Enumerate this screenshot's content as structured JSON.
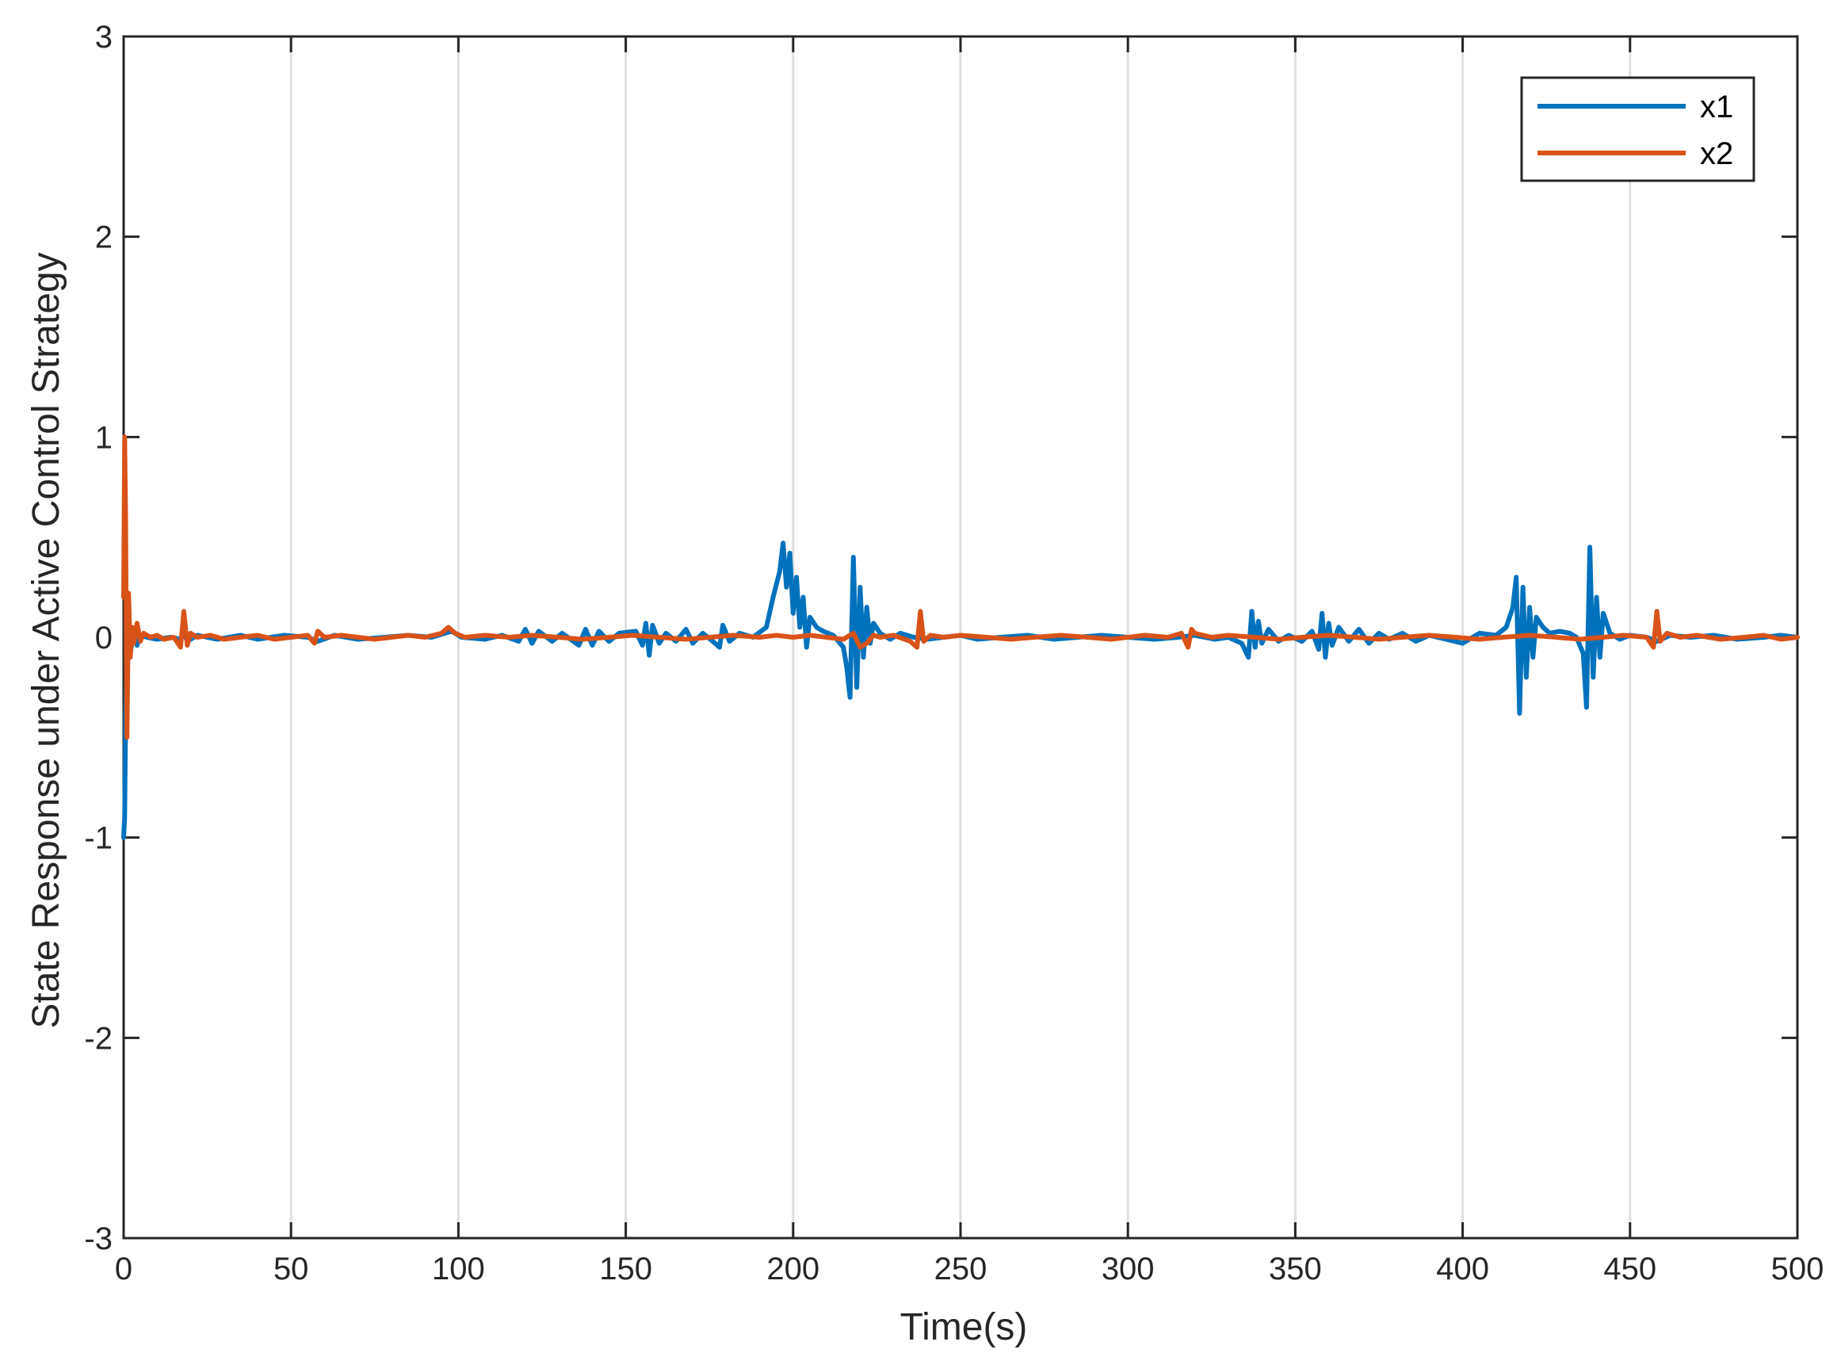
{
  "chart_data": {
    "type": "line",
    "title": "",
    "xlabel": "Time(s)",
    "ylabel": "State Response under Active Control Strategy",
    "xlim": [
      0,
      500
    ],
    "ylim": [
      -3,
      3
    ],
    "xticks": [
      0,
      50,
      100,
      150,
      200,
      250,
      300,
      350,
      400,
      450,
      500
    ],
    "yticks": [
      -3,
      -2,
      -1,
      0,
      1,
      2,
      3
    ],
    "xtick_labels": [
      "0",
      "50",
      "100",
      "150",
      "200",
      "250",
      "300",
      "350",
      "400",
      "450",
      "500"
    ],
    "ytick_labels": [
      "-3",
      "-2",
      "-1",
      "0",
      "1",
      "2",
      "3"
    ],
    "grid": "vertical",
    "legend_position": "top-right",
    "colors": {
      "grid": "#dfdfdf",
      "axes": "#262626",
      "background": "#ffffff"
    },
    "series": [
      {
        "name": "x1",
        "color": "#0072BD",
        "points": [
          [
            0,
            -1.0
          ],
          [
            0.3,
            -0.9
          ],
          [
            0.6,
            -0.4
          ],
          [
            1,
            -0.15
          ],
          [
            1.5,
            0.05
          ],
          [
            2,
            -0.08
          ],
          [
            3,
            0.03
          ],
          [
            4,
            -0.04
          ],
          [
            5,
            0.01
          ],
          [
            7,
            0.0
          ],
          [
            10,
            -0.01
          ],
          [
            14,
            0.0
          ],
          [
            17,
            -0.01
          ],
          [
            18,
            0.02
          ],
          [
            19,
            -0.02
          ],
          [
            22,
            0.01
          ],
          [
            28,
            -0.01
          ],
          [
            35,
            0.01
          ],
          [
            40,
            -0.01
          ],
          [
            48,
            0.01
          ],
          [
            55,
            0.0
          ],
          [
            58,
            -0.02
          ],
          [
            63,
            0.01
          ],
          [
            70,
            -0.01
          ],
          [
            78,
            0.0
          ],
          [
            85,
            0.01
          ],
          [
            92,
            0.0
          ],
          [
            98,
            0.03
          ],
          [
            101,
            0.0
          ],
          [
            108,
            -0.01
          ],
          [
            113,
            0.01
          ],
          [
            118,
            -0.02
          ],
          [
            120,
            0.04
          ],
          [
            122,
            -0.03
          ],
          [
            124,
            0.03
          ],
          [
            128,
            -0.02
          ],
          [
            131,
            0.02
          ],
          [
            136,
            -0.04
          ],
          [
            138,
            0.04
          ],
          [
            140,
            -0.04
          ],
          [
            142,
            0.03
          ],
          [
            145,
            -0.02
          ],
          [
            148,
            0.02
          ],
          [
            153,
            0.03
          ],
          [
            155,
            -0.04
          ],
          [
            156,
            0.07
          ],
          [
            157,
            -0.09
          ],
          [
            158,
            0.06
          ],
          [
            160,
            -0.03
          ],
          [
            162,
            0.02
          ],
          [
            165,
            -0.02
          ],
          [
            168,
            0.04
          ],
          [
            170,
            -0.03
          ],
          [
            173,
            0.02
          ],
          [
            176,
            -0.02
          ],
          [
            178,
            -0.05
          ],
          [
            179,
            0.06
          ],
          [
            181,
            -0.02
          ],
          [
            184,
            0.02
          ],
          [
            188,
            0.0
          ],
          [
            192,
            0.05
          ],
          [
            194,
            0.2
          ],
          [
            196,
            0.33
          ],
          [
            197,
            0.47
          ],
          [
            198,
            0.25
          ],
          [
            199,
            0.42
          ],
          [
            200,
            0.12
          ],
          [
            201,
            0.3
          ],
          [
            202,
            0.05
          ],
          [
            203,
            0.2
          ],
          [
            204,
            -0.05
          ],
          [
            205,
            0.1
          ],
          [
            207,
            0.05
          ],
          [
            209,
            0.03
          ],
          [
            212,
            0.01
          ],
          [
            215,
            -0.05
          ],
          [
            216,
            -0.15
          ],
          [
            217,
            -0.3
          ],
          [
            218,
            0.4
          ],
          [
            219,
            -0.25
          ],
          [
            220,
            0.25
          ],
          [
            221,
            -0.1
          ],
          [
            222,
            0.15
          ],
          [
            223,
            -0.03
          ],
          [
            224,
            0.07
          ],
          [
            226,
            0.02
          ],
          [
            229,
            -0.01
          ],
          [
            232,
            0.02
          ],
          [
            236,
            0.0
          ],
          [
            240,
            -0.01
          ],
          [
            245,
            0.0
          ],
          [
            250,
            0.01
          ],
          [
            255,
            -0.01
          ],
          [
            262,
            0.0
          ],
          [
            270,
            0.01
          ],
          [
            278,
            -0.01
          ],
          [
            285,
            0.0
          ],
          [
            292,
            0.01
          ],
          [
            300,
            0.0
          ],
          [
            308,
            -0.01
          ],
          [
            315,
            0.0
          ],
          [
            320,
            0.01
          ],
          [
            326,
            -0.01
          ],
          [
            330,
            0.0
          ],
          [
            334,
            -0.03
          ],
          [
            336,
            -0.1
          ],
          [
            337,
            0.13
          ],
          [
            338,
            -0.05
          ],
          [
            339,
            0.08
          ],
          [
            340,
            -0.03
          ],
          [
            342,
            0.04
          ],
          [
            345,
            -0.02
          ],
          [
            348,
            0.01
          ],
          [
            352,
            -0.02
          ],
          [
            355,
            0.03
          ],
          [
            357,
            -0.06
          ],
          [
            358,
            0.12
          ],
          [
            359,
            -0.1
          ],
          [
            360,
            0.07
          ],
          [
            361,
            -0.04
          ],
          [
            363,
            0.05
          ],
          [
            366,
            -0.02
          ],
          [
            369,
            0.04
          ],
          [
            372,
            -0.03
          ],
          [
            375,
            0.02
          ],
          [
            378,
            -0.01
          ],
          [
            382,
            0.02
          ],
          [
            386,
            -0.02
          ],
          [
            390,
            0.01
          ],
          [
            395,
            -0.01
          ],
          [
            400,
            -0.03
          ],
          [
            405,
            0.02
          ],
          [
            410,
            0.01
          ],
          [
            413,
            0.05
          ],
          [
            415,
            0.15
          ],
          [
            416,
            0.3
          ],
          [
            417,
            -0.38
          ],
          [
            418,
            0.25
          ],
          [
            419,
            -0.2
          ],
          [
            420,
            0.15
          ],
          [
            421,
            -0.1
          ],
          [
            422,
            0.1
          ],
          [
            424,
            0.05
          ],
          [
            426,
            0.02
          ],
          [
            429,
            0.03
          ],
          [
            432,
            0.02
          ],
          [
            434,
            0.0
          ],
          [
            436,
            -0.08
          ],
          [
            437,
            -0.35
          ],
          [
            438,
            0.45
          ],
          [
            439,
            -0.2
          ],
          [
            440,
            0.2
          ],
          [
            441,
            -0.1
          ],
          [
            442,
            0.12
          ],
          [
            444,
            0.02
          ],
          [
            447,
            -0.01
          ],
          [
            450,
            0.01
          ],
          [
            455,
            0.0
          ],
          [
            458,
            -0.02
          ],
          [
            462,
            0.01
          ],
          [
            468,
            0.0
          ],
          [
            475,
            0.01
          ],
          [
            482,
            -0.01
          ],
          [
            490,
            0.0
          ],
          [
            495,
            0.01
          ],
          [
            500,
            0.0
          ]
        ]
      },
      {
        "name": "x2",
        "color": "#D95319",
        "points": [
          [
            0,
            0.2
          ],
          [
            0.3,
            1.0
          ],
          [
            0.6,
            0.6
          ],
          [
            1,
            -0.5
          ],
          [
            1.5,
            0.22
          ],
          [
            2,
            -0.1
          ],
          [
            2.5,
            0.05
          ],
          [
            3,
            -0.03
          ],
          [
            4,
            0.07
          ],
          [
            5,
            -0.02
          ],
          [
            6,
            0.02
          ],
          [
            8,
            0.0
          ],
          [
            10,
            0.01
          ],
          [
            12,
            -0.01
          ],
          [
            15,
            0.0
          ],
          [
            17,
            -0.05
          ],
          [
            18,
            0.13
          ],
          [
            19,
            -0.04
          ],
          [
            20,
            0.02
          ],
          [
            22,
            0.0
          ],
          [
            26,
            0.01
          ],
          [
            30,
            -0.01
          ],
          [
            35,
            0.0
          ],
          [
            40,
            0.01
          ],
          [
            45,
            -0.01
          ],
          [
            50,
            0.0
          ],
          [
            55,
            0.01
          ],
          [
            57,
            -0.03
          ],
          [
            58,
            0.03
          ],
          [
            60,
            0.0
          ],
          [
            65,
            0.01
          ],
          [
            70,
            0.0
          ],
          [
            75,
            -0.01
          ],
          [
            80,
            0.0
          ],
          [
            85,
            0.01
          ],
          [
            90,
            0.0
          ],
          [
            95,
            0.02
          ],
          [
            97,
            0.05
          ],
          [
            99,
            0.02
          ],
          [
            102,
            0.0
          ],
          [
            108,
            0.01
          ],
          [
            115,
            0.0
          ],
          [
            122,
            0.01
          ],
          [
            130,
            0.0
          ],
          [
            137,
            -0.01
          ],
          [
            145,
            0.0
          ],
          [
            152,
            0.01
          ],
          [
            160,
            0.0
          ],
          [
            168,
            -0.01
          ],
          [
            175,
            0.0
          ],
          [
            182,
            0.01
          ],
          [
            190,
            0.0
          ],
          [
            195,
            0.01
          ],
          [
            200,
            0.0
          ],
          [
            205,
            0.01
          ],
          [
            210,
            0.0
          ],
          [
            215,
            -0.01
          ],
          [
            218,
            0.02
          ],
          [
            220,
            -0.05
          ],
          [
            222,
            -0.03
          ],
          [
            224,
            0.01
          ],
          [
            226,
            0.0
          ],
          [
            230,
            0.01
          ],
          [
            235,
            -0.02
          ],
          [
            237,
            -0.05
          ],
          [
            238,
            0.13
          ],
          [
            239,
            -0.02
          ],
          [
            241,
            0.01
          ],
          [
            245,
            0.0
          ],
          [
            250,
            0.01
          ],
          [
            258,
            0.0
          ],
          [
            265,
            -0.01
          ],
          [
            272,
            0.0
          ],
          [
            280,
            0.01
          ],
          [
            288,
            0.0
          ],
          [
            295,
            -0.01
          ],
          [
            300,
            0.0
          ],
          [
            305,
            0.01
          ],
          [
            312,
            0.0
          ],
          [
            316,
            0.02
          ],
          [
            318,
            -0.05
          ],
          [
            319,
            0.04
          ],
          [
            320,
            0.02
          ],
          [
            325,
            0.0
          ],
          [
            330,
            0.01
          ],
          [
            338,
            0.0
          ],
          [
            345,
            -0.01
          ],
          [
            352,
            0.0
          ],
          [
            360,
            0.01
          ],
          [
            368,
            0.0
          ],
          [
            375,
            -0.01
          ],
          [
            382,
            0.0
          ],
          [
            390,
            0.01
          ],
          [
            398,
            0.0
          ],
          [
            405,
            -0.01
          ],
          [
            412,
            0.0
          ],
          [
            420,
            0.01
          ],
          [
            428,
            0.0
          ],
          [
            435,
            -0.01
          ],
          [
            442,
            0.0
          ],
          [
            448,
            0.01
          ],
          [
            455,
            0.0
          ],
          [
            457,
            -0.05
          ],
          [
            458,
            0.13
          ],
          [
            459,
            -0.02
          ],
          [
            461,
            0.02
          ],
          [
            465,
            0.0
          ],
          [
            470,
            0.01
          ],
          [
            477,
            -0.01
          ],
          [
            484,
            0.0
          ],
          [
            490,
            0.01
          ],
          [
            495,
            -0.01
          ],
          [
            500,
            0.0
          ]
        ]
      }
    ]
  }
}
